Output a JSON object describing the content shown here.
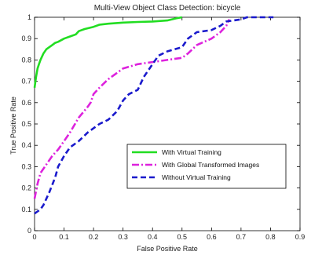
{
  "chart_data": {
    "type": "line",
    "title": "Multi-View Object Class Detection: bicycle",
    "xlabel": "False Positive Rate",
    "ylabel": "True Positive Rate",
    "xlim": [
      0,
      0.9
    ],
    "ylim": [
      0,
      1
    ],
    "xticks": [
      0,
      0.1,
      0.2,
      0.3,
      0.4,
      0.5,
      0.6,
      0.7,
      0.8,
      0.9
    ],
    "yticks": [
      0,
      0.1,
      0.2,
      0.3,
      0.4,
      0.5,
      0.6,
      0.7,
      0.8,
      0.9,
      1
    ],
    "xtick_labels": [
      "0",
      "0.1",
      "0.2",
      "0.3",
      "0.4",
      "0.5",
      "0.6",
      "0.7",
      "0.8",
      "0.9"
    ],
    "ytick_labels": [
      "0",
      "0.1",
      "0.2",
      "0.3",
      "0.4",
      "0.5",
      "0.6",
      "0.7",
      "0.8",
      "0.9",
      "1"
    ],
    "grid": false,
    "legend_position": "lower-right",
    "series": [
      {
        "name": "With Virtual Training",
        "color": "#22dd22",
        "dash": "solid",
        "x": [
          0,
          0.005,
          0.01,
          0.015,
          0.02,
          0.03,
          0.04,
          0.05,
          0.06,
          0.07,
          0.08,
          0.1,
          0.12,
          0.14,
          0.15,
          0.17,
          0.2,
          0.22,
          0.25,
          0.3,
          0.35,
          0.4,
          0.45,
          0.48,
          0.5
        ],
        "y": [
          0.67,
          0.72,
          0.76,
          0.78,
          0.8,
          0.83,
          0.85,
          0.86,
          0.87,
          0.88,
          0.885,
          0.9,
          0.91,
          0.92,
          0.935,
          0.945,
          0.955,
          0.965,
          0.97,
          0.975,
          0.978,
          0.98,
          0.985,
          0.995,
          1.0
        ]
      },
      {
        "name": "With Global Transformed Images",
        "color": "#dd22dd",
        "dash": "dashdot",
        "x": [
          0,
          0.01,
          0.02,
          0.04,
          0.06,
          0.08,
          0.1,
          0.12,
          0.15,
          0.18,
          0.19,
          0.2,
          0.22,
          0.25,
          0.28,
          0.3,
          0.35,
          0.4,
          0.45,
          0.5,
          0.52,
          0.55,
          0.6,
          0.63,
          0.65,
          0.66
        ],
        "y": [
          0.15,
          0.22,
          0.27,
          0.31,
          0.35,
          0.38,
          0.42,
          0.46,
          0.53,
          0.58,
          0.6,
          0.64,
          0.67,
          0.71,
          0.74,
          0.76,
          0.78,
          0.79,
          0.8,
          0.81,
          0.83,
          0.87,
          0.9,
          0.93,
          0.96,
          0.99
        ]
      },
      {
        "name": "Without Virtual Training",
        "color": "#1a1acc",
        "dash": "dashed",
        "x": [
          0,
          0.01,
          0.02,
          0.03,
          0.05,
          0.07,
          0.08,
          0.1,
          0.12,
          0.15,
          0.18,
          0.2,
          0.22,
          0.25,
          0.28,
          0.3,
          0.32,
          0.35,
          0.37,
          0.4,
          0.42,
          0.45,
          0.5,
          0.52,
          0.55,
          0.6,
          0.63,
          0.65,
          0.7,
          0.72,
          0.75,
          0.8,
          0.81
        ],
        "y": [
          0.08,
          0.09,
          0.1,
          0.12,
          0.18,
          0.25,
          0.3,
          0.35,
          0.39,
          0.42,
          0.46,
          0.48,
          0.5,
          0.52,
          0.56,
          0.61,
          0.64,
          0.66,
          0.72,
          0.78,
          0.82,
          0.84,
          0.86,
          0.9,
          0.93,
          0.94,
          0.96,
          0.98,
          0.99,
          1.0,
          1.0,
          1.0,
          1.0
        ]
      }
    ]
  }
}
